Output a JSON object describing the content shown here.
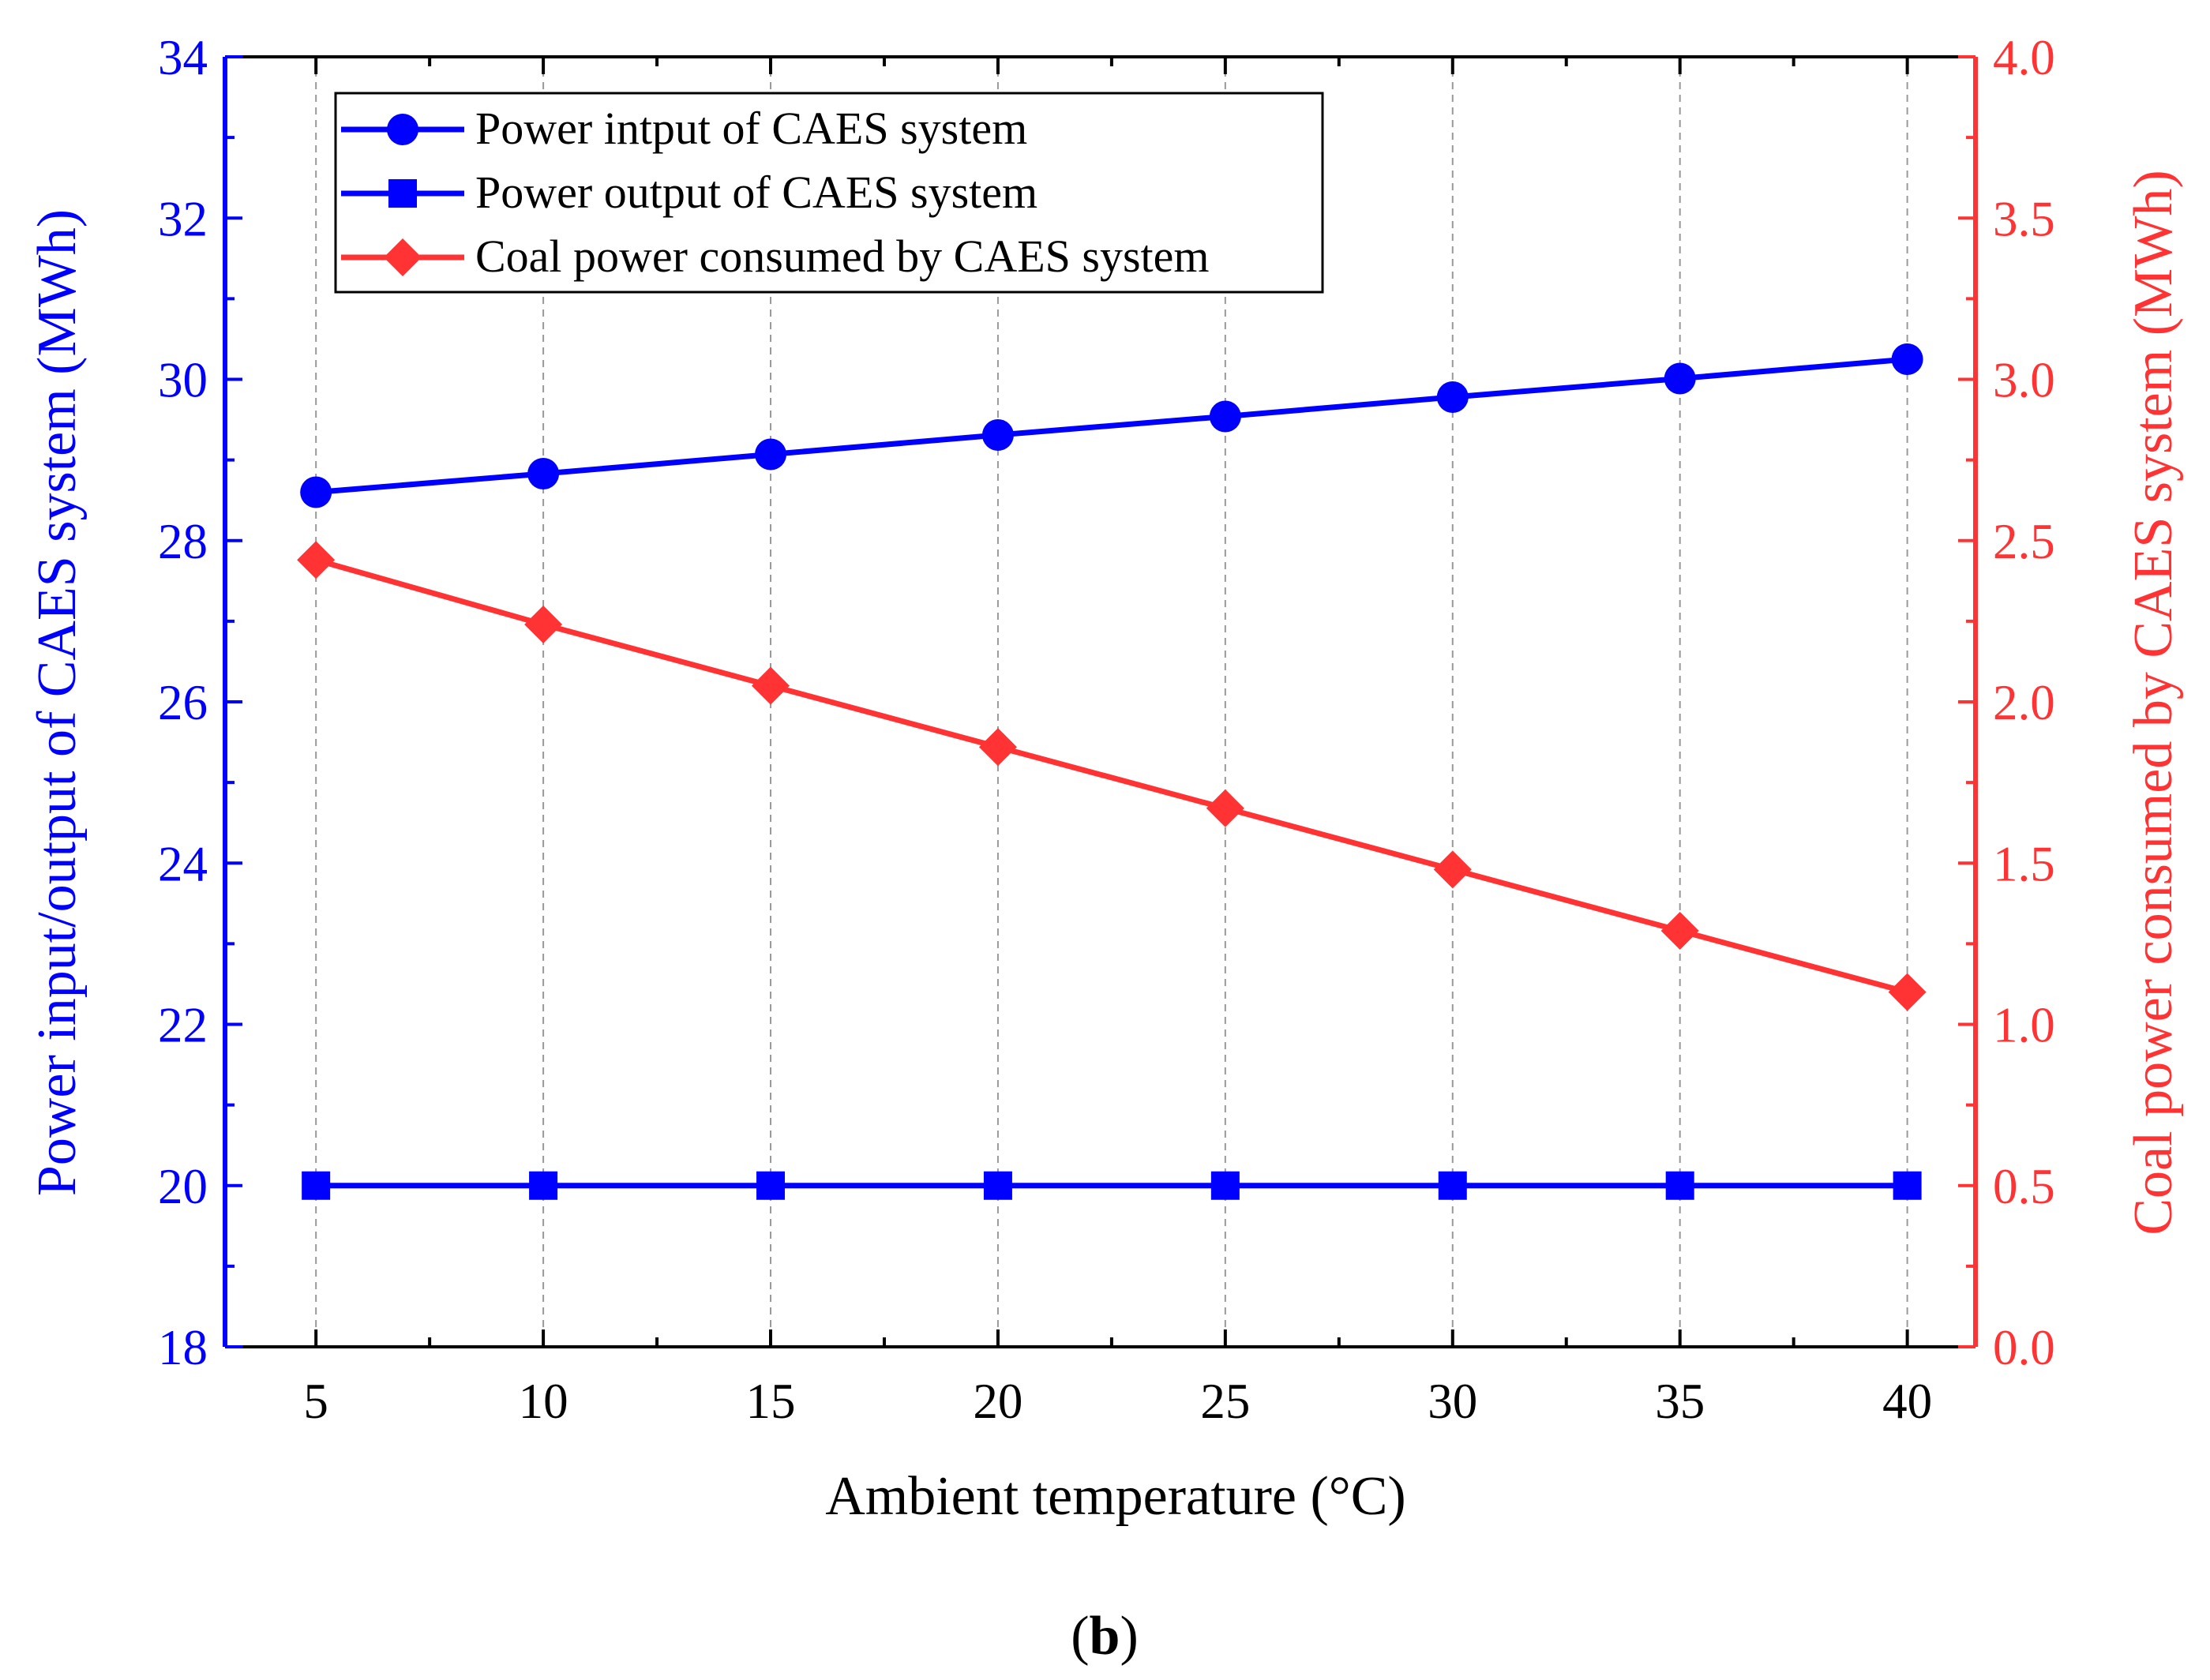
{
  "chart_data": {
    "type": "line",
    "xlabel": "Ambient temperature (°C)",
    "ylabel_left": "Power input/output of CAES system (MWh)",
    "ylabel_right": "Coal power consumed by CAES system (MWh)",
    "x": [
      5,
      10,
      15,
      20,
      25,
      30,
      35,
      40
    ],
    "x_ticks": [
      "5",
      "10",
      "15",
      "20",
      "25",
      "30",
      "35",
      "40"
    ],
    "xlim": [
      3,
      41.5
    ],
    "ylim_left": [
      18,
      34
    ],
    "ylim_right": [
      0.0,
      4.0
    ],
    "y_ticks_left": [
      "18",
      "20",
      "22",
      "24",
      "26",
      "28",
      "30",
      "32",
      "34"
    ],
    "y_ticks_right": [
      "0.0",
      "0.5",
      "1.0",
      "1.5",
      "2.0",
      "2.5",
      "3.0",
      "3.5",
      "4.0"
    ],
    "grid": "vertical dashed",
    "legend_position": "top-left",
    "series": [
      {
        "name": "Power intput of CAES system",
        "axis": "left",
        "marker": "circle",
        "color": "#0000FF",
        "values": [
          28.6,
          28.83,
          29.07,
          29.31,
          29.54,
          29.78,
          30.01,
          30.25
        ]
      },
      {
        "name": "Power output of CAES system",
        "axis": "left",
        "marker": "square",
        "color": "#0000FF",
        "values": [
          20,
          20,
          20,
          20,
          20,
          20,
          20,
          20
        ]
      },
      {
        "name": "Coal power consumed by CAES system",
        "axis": "right",
        "marker": "diamond",
        "color": "#FF3333",
        "values": [
          2.44,
          2.24,
          2.05,
          1.86,
          1.67,
          1.48,
          1.29,
          1.1
        ]
      }
    ]
  },
  "caption": {
    "open": "(",
    "letter": "b",
    "close": ")"
  }
}
